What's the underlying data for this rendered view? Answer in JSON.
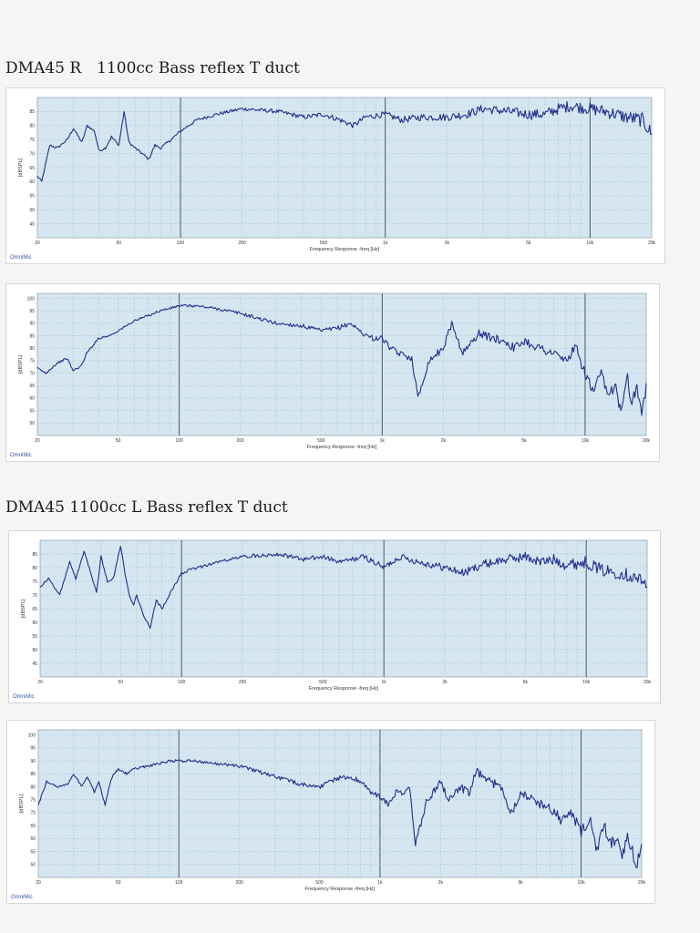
{
  "sections": [
    {
      "title": "DMA45 R　1100cc Bass reflex T duct"
    },
    {
      "title": "DMA45 1100cc L Bass reflex T duct"
    }
  ],
  "colors": {
    "plot_bg": "#d5e6f0",
    "grid": "#8aa6bf",
    "trace": "#1f2f8c",
    "logo": "#3a55a8"
  },
  "chart_data": [
    {
      "type": "line",
      "xscale": "log",
      "xlim": [
        20,
        20000
      ],
      "ylim": [
        40,
        90
      ],
      "yticks": [
        45,
        50,
        55,
        60,
        65,
        70,
        75,
        80,
        85
      ],
      "xticks": [
        20,
        50,
        100,
        200,
        500,
        1000,
        2000,
        5000,
        10000,
        20000
      ],
      "xtick_labels": [
        "20",
        "50",
        "100",
        "200",
        "500",
        "1k",
        "2k",
        "5k",
        "10k",
        "20k"
      ],
      "xlabel": "Frequency Response -freq [Hz]",
      "ylabel": "[dBSPL]",
      "logo": "OmniMic",
      "series": [
        {
          "x": [
            20,
            21,
            23,
            25,
            28,
            30,
            33,
            35,
            38,
            40,
            43,
            46,
            50,
            53,
            56,
            60,
            65,
            70,
            75,
            80,
            90,
            100,
            120,
            150,
            200,
            300,
            400,
            500,
            600,
            700,
            800,
            1000,
            1200,
            1500,
            2000,
            2500,
            3000,
            4000,
            5000,
            6000,
            7000,
            8000,
            10000,
            12000,
            15000,
            18000,
            20000
          ],
          "y": [
            62,
            60,
            73,
            72,
            75,
            79,
            74,
            80,
            78,
            71,
            72,
            76,
            73,
            85,
            74,
            72,
            70,
            68,
            73,
            72,
            75,
            78,
            82,
            84,
            86,
            85,
            83,
            84,
            82,
            80,
            83,
            84,
            82,
            83,
            83,
            84,
            86,
            85,
            84,
            84,
            86,
            87,
            86,
            85,
            83,
            82,
            77
          ]
        }
      ]
    },
    {
      "type": "line",
      "xscale": "log",
      "xlim": [
        20,
        20000
      ],
      "ylim": [
        45,
        102
      ],
      "yticks": [
        50,
        55,
        60,
        65,
        70,
        75,
        80,
        85,
        90,
        95,
        100
      ],
      "xticks": [
        20,
        50,
        100,
        200,
        500,
        1000,
        2000,
        5000,
        10000,
        20000
      ],
      "xtick_labels": [
        "20",
        "50",
        "100",
        "200",
        "500",
        "1k",
        "2k",
        "5k",
        "10k",
        "20k"
      ],
      "xlabel": "Frequency Response -freq [Hz]",
      "ylabel": "[dBSPL]",
      "logo": "OmniMic",
      "series": [
        {
          "x": [
            20,
            22,
            25,
            28,
            30,
            33,
            35,
            40,
            45,
            50,
            55,
            60,
            70,
            80,
            90,
            100,
            120,
            150,
            200,
            300,
            400,
            500,
            600,
            700,
            800,
            900,
            1000,
            1100,
            1200,
            1300,
            1400,
            1500,
            1700,
            2000,
            2200,
            2500,
            2800,
            3000,
            3500,
            4000,
            4500,
            5000,
            6000,
            7000,
            8000,
            9000,
            10000,
            11000,
            12000,
            13000,
            14000,
            15000,
            16000,
            17000,
            18000,
            19000,
            20000
          ],
          "y": [
            72,
            70,
            74,
            76,
            71,
            73,
            78,
            84,
            85,
            87,
            89,
            91,
            93,
            95,
            96,
            97,
            97,
            96,
            94,
            90,
            89,
            87,
            88,
            90,
            86,
            84,
            84,
            80,
            78,
            77,
            76,
            60,
            75,
            80,
            90,
            78,
            83,
            86,
            84,
            83,
            80,
            83,
            80,
            78,
            75,
            80,
            70,
            62,
            70,
            60,
            66,
            55,
            70,
            58,
            65,
            52,
            66
          ]
        }
      ]
    },
    {
      "type": "line",
      "xscale": "log",
      "xlim": [
        20,
        20000
      ],
      "ylim": [
        40,
        90
      ],
      "yticks": [
        45,
        50,
        55,
        60,
        65,
        70,
        75,
        80,
        85
      ],
      "xticks": [
        20,
        50,
        100,
        200,
        500,
        1000,
        2000,
        5000,
        10000,
        20000
      ],
      "xtick_labels": [
        "20",
        "50",
        "100",
        "200",
        "500",
        "1k",
        "2k",
        "5k",
        "10k",
        "20k"
      ],
      "xlabel": "Frequency Response -freq [Hz]",
      "ylabel": "[dBSPL]",
      "logo": "OmniMic",
      "series": [
        {
          "x": [
            20,
            22,
            25,
            28,
            30,
            33,
            35,
            38,
            40,
            43,
            46,
            50,
            52,
            55,
            58,
            60,
            65,
            70,
            75,
            80,
            90,
            100,
            120,
            150,
            200,
            300,
            400,
            500,
            600,
            700,
            800,
            1000,
            1200,
            1500,
            2000,
            2500,
            3000,
            4000,
            5000,
            6000,
            7000,
            8000,
            10000,
            12000,
            15000,
            18000,
            20000
          ],
          "y": [
            73,
            76,
            70,
            82,
            76,
            86,
            80,
            71,
            84,
            75,
            76,
            88,
            80,
            70,
            66,
            70,
            62,
            58,
            68,
            65,
            72,
            78,
            80,
            82,
            84,
            85,
            83,
            84,
            82,
            83,
            84,
            80,
            84,
            82,
            80,
            78,
            81,
            83,
            84,
            82,
            83,
            81,
            82,
            79,
            78,
            76,
            73
          ]
        }
      ]
    },
    {
      "type": "line",
      "xscale": "log",
      "xlim": [
        20,
        20000
      ],
      "ylim": [
        45,
        102
      ],
      "yticks": [
        50,
        55,
        60,
        65,
        70,
        75,
        80,
        85,
        90,
        95,
        100
      ],
      "xticks": [
        20,
        50,
        100,
        200,
        500,
        1000,
        2000,
        5000,
        10000,
        20000
      ],
      "xtick_labels": [
        "20",
        "50",
        "100",
        "200",
        "500",
        "1k",
        "2k",
        "5k",
        "10k",
        "20k"
      ],
      "xlabel": "Frequency Response -freq [Hz]",
      "ylabel": "[dBSPL]",
      "logo": "OmniMic",
      "series": [
        {
          "x": [
            20,
            22,
            25,
            28,
            30,
            33,
            35,
            38,
            40,
            43,
            46,
            50,
            55,
            60,
            70,
            80,
            90,
            100,
            120,
            150,
            200,
            300,
            400,
            500,
            600,
            700,
            800,
            900,
            1000,
            1100,
            1200,
            1300,
            1400,
            1500,
            1700,
            2000,
            2200,
            2500,
            2800,
            3000,
            3500,
            4000,
            4500,
            5000,
            6000,
            7000,
            8000,
            9000,
            10000,
            11000,
            12000,
            13000,
            14000,
            15000,
            16000,
            17000,
            18000,
            19000,
            20000
          ],
          "y": [
            73,
            82,
            80,
            81,
            85,
            80,
            84,
            78,
            82,
            73,
            83,
            87,
            85,
            87,
            88,
            89,
            90,
            90,
            90,
            89,
            88,
            84,
            81,
            80,
            83,
            84,
            82,
            78,
            76,
            73,
            78,
            77,
            80,
            58,
            74,
            82,
            75,
            80,
            77,
            86,
            82,
            80,
            70,
            78,
            74,
            72,
            67,
            70,
            62,
            68,
            55,
            65,
            58,
            60,
            52,
            60,
            55,
            50,
            58
          ]
        }
      ]
    }
  ]
}
